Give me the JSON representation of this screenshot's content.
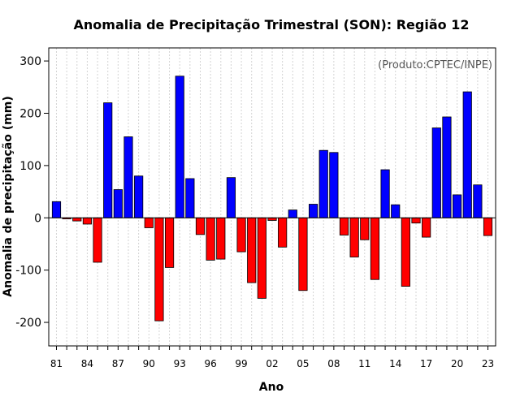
{
  "chart_data": {
    "type": "bar",
    "title": "Anomalia de Precipitação Trimestral (SON): Região 12",
    "xlabel": "Ano",
    "ylabel": "Anomalia de precipitação (mm)",
    "annotation": "(Produto:CPTEC/INPE)",
    "ylim": [
      -245,
      325
    ],
    "yticks": [
      300,
      200,
      100,
      0,
      -100,
      -200
    ],
    "x_tick_labels": [
      "81",
      "84",
      "87",
      "90",
      "93",
      "96",
      "99",
      "02",
      "05",
      "08",
      "11",
      "14",
      "17",
      "20",
      "23"
    ],
    "years": [
      1981,
      1982,
      1983,
      1984,
      1985,
      1986,
      1987,
      1988,
      1989,
      1990,
      1991,
      1992,
      1993,
      1994,
      1995,
      1996,
      1997,
      1998,
      1999,
      2000,
      2001,
      2002,
      2003,
      2004,
      2005,
      2006,
      2007,
      2008,
      2009,
      2010,
      2011,
      2012,
      2013,
      2014,
      2015,
      2016,
      2017,
      2018,
      2019,
      2020,
      2021,
      2022,
      2023
    ],
    "values": [
      31,
      -2,
      -6,
      -12,
      -85,
      220,
      54,
      155,
      80,
      -19,
      -197,
      -95,
      271,
      75,
      -32,
      -81,
      -79,
      77,
      -65,
      -124,
      -154,
      -5,
      -56,
      15,
      -139,
      26,
      129,
      125,
      -33,
      -75,
      -42,
      -118,
      92,
      25,
      -131,
      -10,
      -37,
      172,
      193,
      44,
      241,
      63,
      -34
    ],
    "grid": true,
    "colors": {
      "positive": "#0000ff",
      "negative": "#ff0000",
      "outline": "#000000",
      "grid": "#d3d3d3"
    }
  }
}
